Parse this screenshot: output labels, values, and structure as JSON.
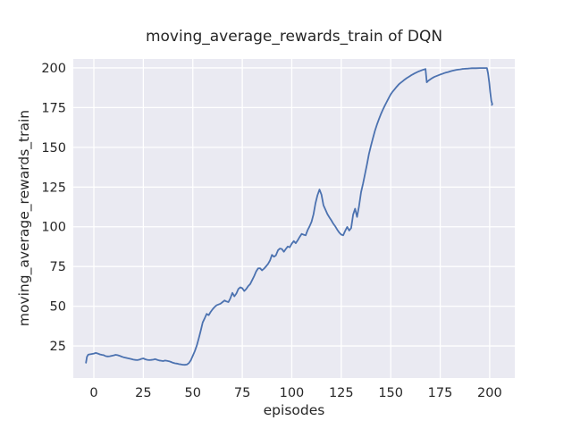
{
  "chart_data": {
    "type": "line",
    "title": "moving_average_rewards_train of DQN",
    "xlabel": "episodes",
    "ylabel": "moving_average_rewards_train",
    "xlim": [
      -10.4,
      212.7
    ],
    "ylim": [
      4.8,
      205.6
    ],
    "xticks": [
      0,
      25,
      50,
      75,
      100,
      125,
      150,
      175,
      200
    ],
    "yticks": [
      25,
      50,
      75,
      100,
      125,
      150,
      175,
      200
    ],
    "grid": true,
    "legend_position": "none",
    "colors": {
      "line": "#4c72b0",
      "axes_background": "#eaeaf2",
      "grid": "#ffffff",
      "text": "#262626",
      "figure_background": "#ffffff"
    },
    "series": [
      {
        "name": "moving_average_rewards_train",
        "points": [
          [
            -4,
            14.5
          ],
          [
            -3.5,
            18.2
          ],
          [
            -2.8,
            19.6
          ],
          [
            -1.5,
            19.9
          ],
          [
            0,
            20.2
          ],
          [
            1,
            20.6
          ],
          [
            2,
            20.2
          ],
          [
            3,
            19.7
          ],
          [
            4,
            19.4
          ],
          [
            5,
            19.2
          ],
          [
            6,
            18.6
          ],
          [
            7,
            18.4
          ],
          [
            8,
            18.5
          ],
          [
            9,
            18.8
          ],
          [
            10,
            19.1
          ],
          [
            11,
            19.4
          ],
          [
            12,
            19.2
          ],
          [
            13,
            18.8
          ],
          [
            14,
            18.3
          ],
          [
            15,
            17.9
          ],
          [
            16,
            17.6
          ],
          [
            17,
            17.3
          ],
          [
            18,
            17.0
          ],
          [
            19,
            16.7
          ],
          [
            20,
            16.4
          ],
          [
            21,
            16.2
          ],
          [
            22,
            16.1
          ],
          [
            23,
            16.4
          ],
          [
            24,
            16.9
          ],
          [
            25,
            17.2
          ],
          [
            26,
            16.6
          ],
          [
            27,
            16.3
          ],
          [
            28,
            16.1
          ],
          [
            29,
            16.2
          ],
          [
            30,
            16.4
          ],
          [
            31,
            16.7
          ],
          [
            32,
            16.3
          ],
          [
            33,
            15.9
          ],
          [
            34,
            15.7
          ],
          [
            35,
            15.5
          ],
          [
            36,
            15.8
          ],
          [
            37,
            15.6
          ],
          [
            38,
            15.4
          ],
          [
            39,
            14.9
          ],
          [
            40,
            14.4
          ],
          [
            41,
            14.1
          ],
          [
            42,
            13.9
          ],
          [
            43,
            13.6
          ],
          [
            44,
            13.4
          ],
          [
            45,
            13.2
          ],
          [
            46,
            13.1
          ],
          [
            47,
            13.3
          ],
          [
            48,
            14.2
          ],
          [
            49,
            16.0
          ],
          [
            50,
            18.8
          ],
          [
            51,
            21.8
          ],
          [
            52,
            25.3
          ],
          [
            53,
            29.8
          ],
          [
            54,
            34.6
          ],
          [
            55,
            39.8
          ],
          [
            56,
            42.4
          ],
          [
            57,
            45.2
          ],
          [
            58,
            44.4
          ],
          [
            59,
            46.4
          ],
          [
            60,
            48.1
          ],
          [
            61,
            49.5
          ],
          [
            62,
            50.6
          ],
          [
            63,
            51.1
          ],
          [
            64,
            51.6
          ],
          [
            65,
            52.6
          ],
          [
            66,
            53.6
          ],
          [
            67,
            53.0
          ],
          [
            68,
            52.6
          ],
          [
            69,
            55.1
          ],
          [
            70,
            58.4
          ],
          [
            71,
            56.2
          ],
          [
            72,
            58.0
          ],
          [
            73,
            60.9
          ],
          [
            74,
            61.9
          ],
          [
            75,
            61.3
          ],
          [
            76,
            59.6
          ],
          [
            77,
            60.8
          ],
          [
            78,
            62.7
          ],
          [
            79,
            64.0
          ],
          [
            80,
            66.5
          ],
          [
            81,
            69.0
          ],
          [
            82,
            71.9
          ],
          [
            83,
            73.8
          ],
          [
            84,
            73.9
          ],
          [
            85,
            72.6
          ],
          [
            86,
            73.7
          ],
          [
            87,
            75.1
          ],
          [
            88,
            76.6
          ],
          [
            89,
            78.8
          ],
          [
            90,
            82.3
          ],
          [
            91,
            81.2
          ],
          [
            92,
            82.0
          ],
          [
            93,
            85.2
          ],
          [
            94,
            86.3
          ],
          [
            95,
            86.0
          ],
          [
            96,
            84.3
          ],
          [
            97,
            86.0
          ],
          [
            98,
            87.6
          ],
          [
            99,
            87.1
          ],
          [
            100,
            89.4
          ],
          [
            101,
            91.0
          ],
          [
            102,
            89.7
          ],
          [
            103,
            91.5
          ],
          [
            104,
            93.6
          ],
          [
            105,
            95.5
          ],
          [
            106,
            95.0
          ],
          [
            107,
            94.6
          ],
          [
            108,
            97.9
          ],
          [
            109,
            100.3
          ],
          [
            110,
            103.2
          ],
          [
            111,
            107.9
          ],
          [
            112,
            114.8
          ],
          [
            113,
            119.8
          ],
          [
            114,
            123.4
          ],
          [
            115,
            120.2
          ],
          [
            116,
            113.6
          ],
          [
            117,
            110.8
          ],
          [
            118,
            108.0
          ],
          [
            119,
            106.0
          ],
          [
            120,
            104.1
          ],
          [
            121,
            101.9
          ],
          [
            122,
            100.2
          ],
          [
            123,
            98.1
          ],
          [
            124,
            96.3
          ],
          [
            125,
            95.1
          ],
          [
            126,
            94.6
          ],
          [
            127,
            97.4
          ],
          [
            128,
            99.9
          ],
          [
            129,
            97.6
          ],
          [
            130,
            99.2
          ],
          [
            131,
            107.6
          ],
          [
            132,
            111.4
          ],
          [
            133,
            106.2
          ],
          [
            134,
            112.9
          ],
          [
            135,
            121.8
          ],
          [
            136,
            127.2
          ],
          [
            137,
            133.2
          ],
          [
            138,
            139.3
          ],
          [
            139,
            145.8
          ],
          [
            140,
            150.9
          ],
          [
            141,
            155.6
          ],
          [
            142,
            160.4
          ],
          [
            143,
            164.2
          ],
          [
            144,
            167.6
          ],
          [
            145,
            170.8
          ],
          [
            146,
            173.6
          ],
          [
            147,
            176.2
          ],
          [
            148,
            178.6
          ],
          [
            149,
            181.1
          ],
          [
            150,
            183.4
          ],
          [
            151,
            185.1
          ],
          [
            152,
            186.6
          ],
          [
            153,
            188.1
          ],
          [
            154,
            189.5
          ],
          [
            155,
            190.6
          ],
          [
            156,
            191.6
          ],
          [
            157,
            192.6
          ],
          [
            158,
            193.5
          ],
          [
            159,
            194.3
          ],
          [
            160,
            195.1
          ],
          [
            161,
            195.8
          ],
          [
            162,
            196.5
          ],
          [
            163,
            197.1
          ],
          [
            164,
            197.7
          ],
          [
            165,
            198.2
          ],
          [
            166,
            198.7
          ],
          [
            167,
            199.1
          ],
          [
            167.6,
            199.3
          ],
          [
            168.2,
            190.9
          ],
          [
            169,
            191.9
          ],
          [
            170,
            192.8
          ],
          [
            171,
            193.6
          ],
          [
            172,
            194.3
          ],
          [
            173,
            194.8
          ],
          [
            174,
            195.3
          ],
          [
            175,
            195.8
          ],
          [
            176,
            196.2
          ],
          [
            177,
            196.7
          ],
          [
            178,
            197.1
          ],
          [
            179,
            197.4
          ],
          [
            180,
            197.8
          ],
          [
            181,
            198.1
          ],
          [
            182,
            198.4
          ],
          [
            183,
            198.7
          ],
          [
            184,
            198.9
          ],
          [
            185,
            199.1
          ],
          [
            186,
            199.3
          ],
          [
            187,
            199.4
          ],
          [
            188,
            199.5
          ],
          [
            189,
            199.6
          ],
          [
            190,
            199.7
          ],
          [
            191,
            199.8
          ],
          [
            193,
            199.8
          ],
          [
            195,
            199.9
          ],
          [
            197,
            199.9
          ],
          [
            198.6,
            199.9
          ],
          [
            199.2,
            196.5
          ],
          [
            199.8,
            190.8
          ],
          [
            200.3,
            184.8
          ],
          [
            200.8,
            179.3
          ],
          [
            201.3,
            177.2
          ],
          [
            201.1,
            176.7
          ]
        ]
      }
    ]
  }
}
